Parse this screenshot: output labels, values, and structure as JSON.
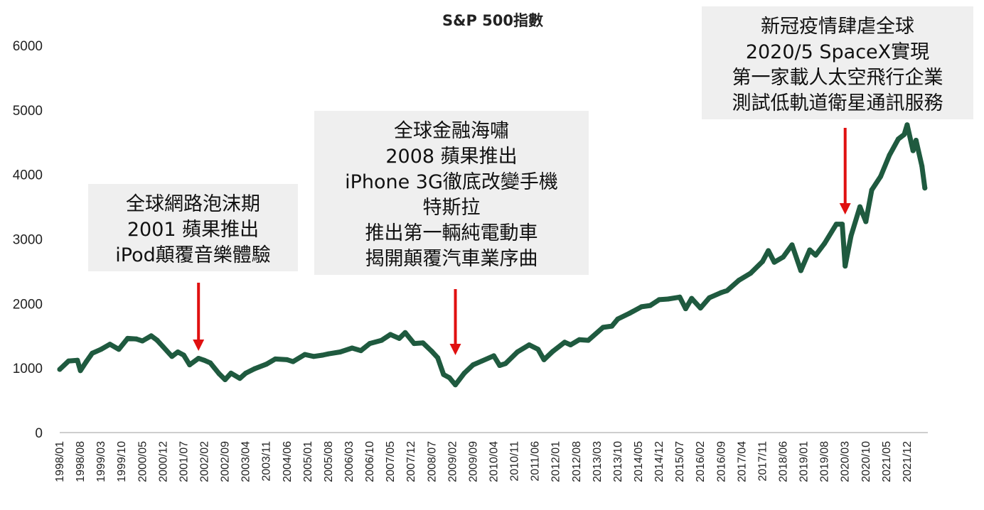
{
  "chart_data": {
    "type": "line",
    "title": "S&P 500指數",
    "xlabel": "",
    "ylabel": "",
    "ylim": [
      0,
      6000
    ],
    "yticks": [
      "0",
      "1000",
      "2000",
      "3000",
      "4000",
      "5000",
      "6000"
    ],
    "xtick_labels": [
      "1998/01",
      "1998/08",
      "1999/03",
      "1999/10",
      "2000/05",
      "2000/12",
      "2001/07",
      "2002/02",
      "2002/09",
      "2003/04",
      "2003/11",
      "2004/06",
      "2005/01",
      "2005/08",
      "2006/03",
      "2006/10",
      "2007/05",
      "2007/12",
      "2008/07",
      "2009/02",
      "2009/09",
      "2010/04",
      "2010/11",
      "2011/06",
      "2012/01",
      "2012/08",
      "2013/03",
      "2013/10",
      "2014/05",
      "2014/12",
      "2015/07",
      "2016/02",
      "2016/09",
      "2017/04",
      "2017/11",
      "2018/06",
      "2019/01",
      "2019/08",
      "2020/03",
      "2020/10",
      "2021/05",
      "2021/12"
    ],
    "grid": false,
    "series_color": "#1f5a3f",
    "arrow_color": "#e01010",
    "series": [
      {
        "name": "",
        "points": [
          [
            "1998/01",
            980
          ],
          [
            "1998/04",
            1110
          ],
          [
            "1998/07",
            1120
          ],
          [
            "1998/08",
            960
          ],
          [
            "1998/10",
            1100
          ],
          [
            "1998/12",
            1230
          ],
          [
            "1999/03",
            1290
          ],
          [
            "1999/06",
            1370
          ],
          [
            "1999/09",
            1290
          ],
          [
            "1999/12",
            1460
          ],
          [
            "2000/03",
            1450
          ],
          [
            "2000/05",
            1420
          ],
          [
            "2000/08",
            1500
          ],
          [
            "2000/10",
            1430
          ],
          [
            "2000/12",
            1330
          ],
          [
            "2001/03",
            1180
          ],
          [
            "2001/05",
            1250
          ],
          [
            "2001/07",
            1200
          ],
          [
            "2001/09",
            1050
          ],
          [
            "2001/12",
            1150
          ],
          [
            "2002/02",
            1120
          ],
          [
            "2002/04",
            1080
          ],
          [
            "2002/07",
            910
          ],
          [
            "2002/09",
            820
          ],
          [
            "2002/11",
            920
          ],
          [
            "2003/02",
            840
          ],
          [
            "2003/04",
            920
          ],
          [
            "2003/07",
            990
          ],
          [
            "2003/11",
            1060
          ],
          [
            "2004/02",
            1140
          ],
          [
            "2004/06",
            1130
          ],
          [
            "2004/08",
            1100
          ],
          [
            "2004/12",
            1210
          ],
          [
            "2005/03",
            1180
          ],
          [
            "2005/06",
            1200
          ],
          [
            "2005/08",
            1220
          ],
          [
            "2005/12",
            1250
          ],
          [
            "2006/04",
            1310
          ],
          [
            "2006/07",
            1270
          ],
          [
            "2006/10",
            1380
          ],
          [
            "2007/02",
            1430
          ],
          [
            "2007/05",
            1520
          ],
          [
            "2007/08",
            1460
          ],
          [
            "2007/10",
            1550
          ],
          [
            "2008/01",
            1380
          ],
          [
            "2008/04",
            1390
          ],
          [
            "2008/07",
            1260
          ],
          [
            "2008/09",
            1160
          ],
          [
            "2008/11",
            900
          ],
          [
            "2009/01",
            850
          ],
          [
            "2009/03",
            740
          ],
          [
            "2009/06",
            920
          ],
          [
            "2009/09",
            1050
          ],
          [
            "2009/12",
            1110
          ],
          [
            "2010/04",
            1190
          ],
          [
            "2010/06",
            1040
          ],
          [
            "2010/08",
            1070
          ],
          [
            "2010/12",
            1250
          ],
          [
            "2011/04",
            1360
          ],
          [
            "2011/07",
            1290
          ],
          [
            "2011/09",
            1130
          ],
          [
            "2011/12",
            1260
          ],
          [
            "2012/04",
            1400
          ],
          [
            "2012/06",
            1360
          ],
          [
            "2012/09",
            1440
          ],
          [
            "2012/12",
            1430
          ],
          [
            "2013/05",
            1630
          ],
          [
            "2013/08",
            1650
          ],
          [
            "2013/10",
            1760
          ],
          [
            "2014/02",
            1850
          ],
          [
            "2014/06",
            1950
          ],
          [
            "2014/09",
            1970
          ],
          [
            "2014/12",
            2060
          ],
          [
            "2015/03",
            2070
          ],
          [
            "2015/07",
            2100
          ],
          [
            "2015/09",
            1920
          ],
          [
            "2015/11",
            2080
          ],
          [
            "2016/02",
            1930
          ],
          [
            "2016/05",
            2090
          ],
          [
            "2016/09",
            2170
          ],
          [
            "2016/11",
            2200
          ],
          [
            "2017/03",
            2360
          ],
          [
            "2017/07",
            2470
          ],
          [
            "2017/11",
            2650
          ],
          [
            "2018/01",
            2820
          ],
          [
            "2018/03",
            2640
          ],
          [
            "2018/06",
            2720
          ],
          [
            "2018/09",
            2910
          ],
          [
            "2018/12",
            2510
          ],
          [
            "2019/03",
            2830
          ],
          [
            "2019/05",
            2750
          ],
          [
            "2019/08",
            2930
          ],
          [
            "2019/12",
            3230
          ],
          [
            "2020/02",
            3230
          ],
          [
            "2020/03",
            2580
          ],
          [
            "2020/05",
            3050
          ],
          [
            "2020/08",
            3500
          ],
          [
            "2020/10",
            3270
          ],
          [
            "2020/12",
            3760
          ],
          [
            "2021/03",
            3970
          ],
          [
            "2021/06",
            4300
          ],
          [
            "2021/09",
            4550
          ],
          [
            "2021/11",
            4620
          ],
          [
            "2021/12",
            4770
          ],
          [
            "2022/02",
            4370
          ],
          [
            "2022/03",
            4530
          ],
          [
            "2022/05",
            4130
          ],
          [
            "2022/06",
            3790
          ]
        ]
      }
    ],
    "annotations": [
      {
        "lines": [
          "全球網路泡沫期",
          "2001 蘋果推出",
          "iPod顛覆音樂體驗"
        ],
        "arrow_date": "2001/12"
      },
      {
        "lines": [
          "全球金融海嘯",
          "2008 蘋果推出",
          "iPhone 3G徹底改變手機",
          "特斯拉",
          "推出第一輛純電動車",
          "揭開顛覆汽車業序曲"
        ],
        "arrow_date": "2009/03"
      },
      {
        "lines": [
          "新冠疫情肆虐全球",
          "2020/5 SpaceX實現",
          "第一家載人太空飛行企業",
          "測試低軌道衛星通訊服務"
        ],
        "arrow_date": "2020/03"
      }
    ]
  }
}
